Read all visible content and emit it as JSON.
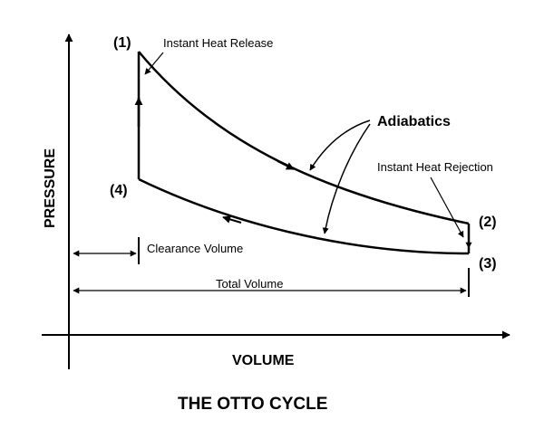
{
  "diagram": {
    "title": "THE OTTO CYCLE",
    "axes": {
      "y_label": "PRESSURE",
      "x_label": "VOLUME"
    },
    "points": [
      "(1)",
      "(2)",
      "(3)",
      "(4)"
    ],
    "annotations": {
      "heat_release": "Instant Heat Release",
      "adiabatics": "Adiabatics",
      "heat_rejection": "Instant Heat Rejection",
      "clearance_volume": "Clearance Volume",
      "total_volume": "Total Volume"
    },
    "colors": {
      "ink": "#000000",
      "background": "#ffffff"
    }
  }
}
